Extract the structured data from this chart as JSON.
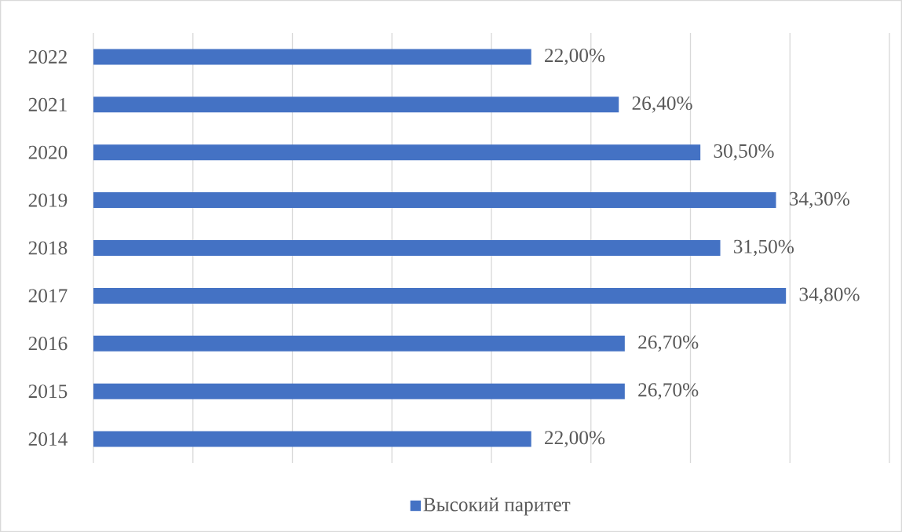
{
  "chart_data": {
    "type": "bar",
    "orientation": "horizontal",
    "categories": [
      "2022",
      "2021",
      "2020",
      "2019",
      "2018",
      "2017",
      "2016",
      "2015",
      "2014"
    ],
    "series": [
      {
        "name": "Высокий паритет",
        "color": "#4472c4",
        "values": [
          22.0,
          26.4,
          30.5,
          34.3,
          31.5,
          34.8,
          26.7,
          26.7,
          22.0
        ],
        "value_labels": [
          "22,00%",
          "26,40%",
          "30,50%",
          "34,30%",
          "31,50%",
          "34,80%",
          "26,70%",
          "26,70%",
          "22,00%"
        ]
      }
    ],
    "xlim": [
      0,
      40
    ],
    "xticks": [
      {
        "value": 0,
        "label": null
      },
      {
        "value": 5,
        "label": null
      },
      {
        "value": 10,
        "label": null
      },
      {
        "value": 15,
        "label": null
      },
      {
        "value": 20,
        "label": null
      },
      {
        "value": 25,
        "label": null
      },
      {
        "value": 30,
        "label": null
      },
      {
        "value": 35,
        "label": null
      },
      {
        "value": 40,
        "label": null
      }
    ],
    "tick_labels": "y",
    "grid": "x",
    "legend": "bottom"
  }
}
